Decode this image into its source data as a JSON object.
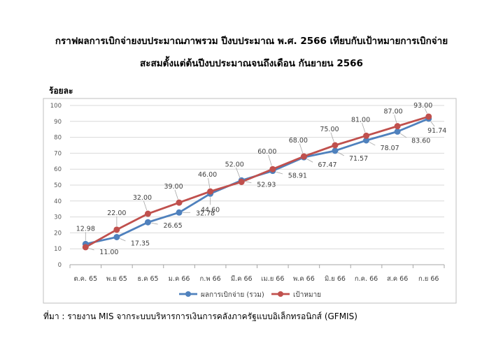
{
  "title": {
    "line1": "กราฟผลการเบิกจ่ายงบประมาณภาพรวม ปีงบประมาณ พ.ศ. 2566 เทียบกับเป้าหมายการเบิกจ่าย",
    "line2": "สะสมตั้งแต่ต้นปีงบประมาณจนถึงเดือน กันยายน 2566"
  },
  "unit_label": "ร้อยละ",
  "source": "ที่มา : รายงาน MIS จากระบบบริหารการเงินการคลังภาครัฐแบบอิเล็กทรอนิกส์ (GFMIS)",
  "colors": {
    "actual": "#4f81bd",
    "target": "#c0504d",
    "grid": "#d9d9d9",
    "frame": "#bfbfbf"
  },
  "chart_data": {
    "type": "line",
    "categories": [
      "ต.ค. 65",
      "พ.ย 65",
      "ธ.ค 65",
      "ม.ค 66",
      "ก.พ 66",
      "มี.ค 66",
      "เม.ย 66",
      "พ.ค 66",
      "มิ.ย 66",
      "ก.ค. 66",
      "ส.ค 66",
      "ก.ย 66"
    ],
    "series": [
      {
        "name": "ผลการเบิกจ่าย (รวม)",
        "values": [
          12.98,
          17.35,
          26.65,
          32.78,
          44.6,
          52.93,
          58.91,
          67.47,
          71.57,
          78.07,
          83.6,
          91.74
        ],
        "labels": [
          "12.98",
          "17.35",
          "26.65",
          "32.78",
          "44.60",
          "52.93",
          "58.91",
          "67.47",
          "71.57",
          "78.07",
          "83.60",
          "91.74"
        ]
      },
      {
        "name": "เป้าหมาย",
        "values": [
          11.0,
          22.0,
          32.0,
          39.0,
          46.0,
          52.0,
          60.0,
          68.0,
          75.0,
          81.0,
          87.0,
          93.0
        ],
        "labels": [
          "11.00",
          "22.00",
          "32.00",
          "39.00",
          "46.00",
          "52.00",
          "60.00",
          "68.00",
          "75.00",
          "81.00",
          "87.00",
          "93.00"
        ]
      }
    ],
    "ylim": [
      0,
      100
    ],
    "yticks": [
      "0",
      "10",
      "20",
      "30",
      "40",
      "50",
      "60",
      "70",
      "80",
      "90",
      "100"
    ],
    "grid": true,
    "legend_position": "bottom"
  }
}
